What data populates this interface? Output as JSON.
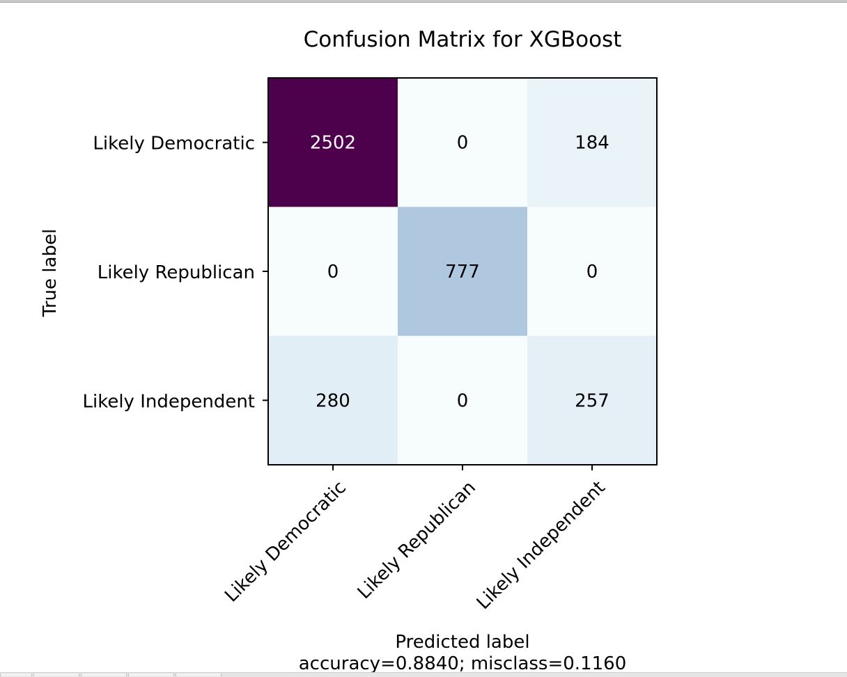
{
  "chart_data": {
    "type": "heatmap",
    "title": "Confusion Matrix for XGBoost",
    "ylabel": "True label",
    "xlabel": "Predicted label",
    "footer": "accuracy=0.8840; misclass=0.1160",
    "row_labels": [
      "Likely Democratic",
      "Likely Republican",
      "Likely Independent"
    ],
    "col_labels": [
      "Likely Democratic",
      "Likely Republican",
      "Likely Independent"
    ],
    "values": [
      [
        2502,
        0,
        184
      ],
      [
        0,
        777,
        0
      ],
      [
        280,
        0,
        257
      ]
    ],
    "colormap": "BuPu",
    "vmin": 0,
    "vmax": 2502,
    "colorbar": false,
    "grid": false
  }
}
